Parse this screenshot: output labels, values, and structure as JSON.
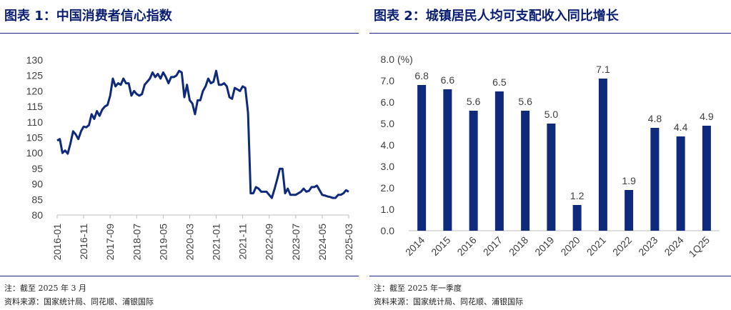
{
  "colors": {
    "navy": "#0a1f72",
    "series": "#0f2a7a",
    "axis": "#bfbfbf"
  },
  "left": {
    "title_label": "图表 1",
    "title_text": "中国消费者信心指数",
    "note": "注：截至 2025 年 3 月",
    "source": "资料来源：国家统计局、同花顺、浦银国际"
  },
  "right": {
    "title_label": "图表 2",
    "title_text": "城镇居民人均可支配收入同比增长",
    "note": "注：截至 2025 年一季度",
    "source": "资料来源：国家统计局、同花顺、浦银国际"
  },
  "chart_data": [
    {
      "type": "line",
      "title": "中国消费者信心指数",
      "ylim": [
        80,
        130
      ],
      "yticks": [
        80,
        85,
        90,
        95,
        100,
        105,
        110,
        115,
        120,
        125,
        130
      ],
      "xticks": [
        "2016-01",
        "2016-11",
        "2017-09",
        "2018-07",
        "2019-05",
        "2020-03",
        "2021-01",
        "2021-11",
        "2022-09",
        "2023-07",
        "2024-05",
        "2025-03"
      ],
      "start": "2016-01",
      "series": [
        {
          "name": "消费者信心指数",
          "values": [
            104,
            104.5,
            100,
            100.8,
            99.8,
            103,
            107,
            106,
            104.5,
            107,
            108.5,
            108.3,
            109,
            112.5,
            111,
            113.5,
            112,
            114,
            115,
            115.5,
            118.5,
            124,
            121.5,
            122.5,
            122,
            124,
            122.5,
            122.5,
            118.5,
            120,
            119,
            118.5,
            119,
            122,
            123,
            124,
            126,
            124.5,
            125.5,
            124,
            126,
            124.5,
            122.5,
            124.5,
            124.5,
            125,
            126.5,
            126,
            118,
            122,
            117,
            116,
            112.5,
            117,
            117,
            120,
            121.5,
            124,
            122.5,
            123,
            126.5,
            122,
            122,
            122.5,
            121.5,
            118,
            117.5,
            121,
            120.5,
            120,
            121.5,
            121,
            113,
            87,
            87,
            89,
            88.5,
            87.5,
            87.5,
            87.5,
            86.5,
            85.5,
            88.3,
            91.5,
            94.9,
            94.9,
            87,
            88.5,
            86.5,
            86.5,
            86.5,
            87,
            87.5,
            88.5,
            87.5,
            87.8,
            89,
            89,
            89.5,
            88,
            86.5,
            86.3,
            86,
            85.8,
            85.5,
            85.5,
            86.5,
            86.5,
            87,
            88,
            87.5
          ]
        }
      ]
    },
    {
      "type": "bar",
      "title": "城镇居民人均可支配收入同比增长",
      "unit": "(%)",
      "ylim": [
        0,
        8
      ],
      "yticks": [
        "0.0",
        "1.0",
        "2.0",
        "3.0",
        "4.0",
        "5.0",
        "6.0",
        "7.0",
        "8.0"
      ],
      "categories": [
        "2014",
        "2015",
        "2016",
        "2017",
        "2018",
        "2019",
        "2020",
        "2021",
        "2022",
        "2023",
        "2024",
        "1Q25"
      ],
      "values": [
        6.8,
        6.6,
        5.6,
        6.5,
        5.6,
        5.0,
        1.2,
        7.1,
        1.9,
        4.8,
        4.4,
        4.9
      ],
      "labels": [
        "6.8",
        "6.6",
        "5.6",
        "6.5",
        "5.6",
        "5.0",
        "1.2",
        "7.1",
        "1.9",
        "4.8",
        "4.4",
        "4.9"
      ]
    }
  ]
}
